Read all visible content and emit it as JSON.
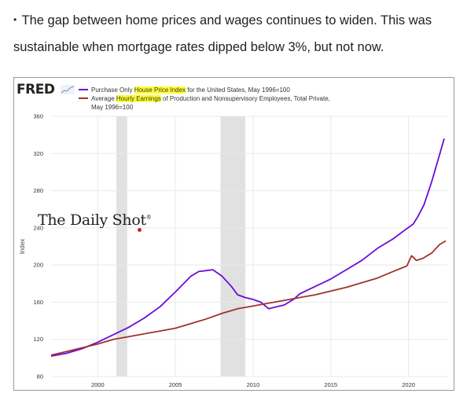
{
  "intro": {
    "bullet": "•",
    "text": "The gap between home prices and wages continues to widen. This was sustainable when mortgage rates dipped below 3%, but not now."
  },
  "fred": {
    "logo": "FRED",
    "logo_icon": "fred-sparkline-icon"
  },
  "watermark": {
    "text": "The Daily Shot",
    "mark": "®"
  },
  "legend": {
    "items": [
      {
        "pre": "Purchase Only ",
        "hl": "House Price Index",
        "post": " for the United States, May 1996=100",
        "cont": ""
      },
      {
        "pre": "Average ",
        "hl": "Hourly Earnings",
        "post": " of Production and Nonsupervisory Employees, Total Private,",
        "cont": "May 1996=100"
      }
    ]
  },
  "colors": {
    "hpi": "#6a0dd9",
    "earnings": "#a1322b",
    "recession": "#e1e1e1",
    "grid": "#e9e9e9"
  },
  "chart_data": {
    "type": "line",
    "xlim": [
      1997,
      2022.5
    ],
    "ylim": [
      80,
      360
    ],
    "yticks": [
      "80",
      "120",
      "160",
      "200",
      "240",
      "280",
      "320",
      "360"
    ],
    "xticks": [
      "2000",
      "2005",
      "2010",
      "2015",
      "2020"
    ],
    "ylabel": "Index",
    "recessions": [
      [
        2001.2,
        2001.9
      ],
      [
        2007.9,
        2009.5
      ]
    ],
    "series": [
      {
        "name": "Purchase Only House Price Index for the United States, May 1996=100",
        "color": "#6a0dd9",
        "points": [
          [
            1997,
            102
          ],
          [
            1998,
            105
          ],
          [
            1999,
            110
          ],
          [
            2000,
            117
          ],
          [
            2001,
            125
          ],
          [
            2002,
            133
          ],
          [
            2003,
            143
          ],
          [
            2004,
            155
          ],
          [
            2005,
            171
          ],
          [
            2006,
            188
          ],
          [
            2006.5,
            193
          ],
          [
            2007,
            194
          ],
          [
            2007.4,
            195
          ],
          [
            2008,
            188
          ],
          [
            2008.6,
            177
          ],
          [
            2009,
            168
          ],
          [
            2009.5,
            165
          ],
          [
            2010,
            163
          ],
          [
            2010.5,
            160
          ],
          [
            2011,
            153
          ],
          [
            2011.5,
            155
          ],
          [
            2012,
            157
          ],
          [
            2012.6,
            163
          ],
          [
            2013,
            169
          ],
          [
            2014,
            177
          ],
          [
            2015,
            185
          ],
          [
            2016,
            195
          ],
          [
            2017,
            205
          ],
          [
            2018,
            218
          ],
          [
            2019,
            228
          ],
          [
            2019.8,
            238
          ],
          [
            2020.3,
            244
          ],
          [
            2020.6,
            252
          ],
          [
            2021,
            265
          ],
          [
            2021.5,
            290
          ],
          [
            2021.9,
            313
          ],
          [
            2022.3,
            336
          ]
        ]
      },
      {
        "name": "Average Hourly Earnings of Production and Nonsupervisory Employees, Total Private, May 1996=100",
        "color": "#a1322b",
        "points": [
          [
            1997,
            103
          ],
          [
            1998,
            107
          ],
          [
            1999,
            111
          ],
          [
            2000,
            115
          ],
          [
            2001,
            120
          ],
          [
            2002,
            123
          ],
          [
            2003,
            126
          ],
          [
            2004,
            129
          ],
          [
            2005,
            132
          ],
          [
            2006,
            137
          ],
          [
            2007,
            142
          ],
          [
            2008,
            148
          ],
          [
            2009,
            153
          ],
          [
            2010,
            156
          ],
          [
            2011,
            159
          ],
          [
            2012,
            162
          ],
          [
            2013,
            165
          ],
          [
            2014,
            168
          ],
          [
            2015,
            172
          ],
          [
            2016,
            176
          ],
          [
            2017,
            181
          ],
          [
            2018,
            186
          ],
          [
            2019,
            193
          ],
          [
            2019.9,
            199
          ],
          [
            2020.2,
            210
          ],
          [
            2020.5,
            205
          ],
          [
            2020.9,
            207
          ],
          [
            2021.5,
            213
          ],
          [
            2022,
            222
          ],
          [
            2022.4,
            226
          ]
        ]
      }
    ]
  }
}
